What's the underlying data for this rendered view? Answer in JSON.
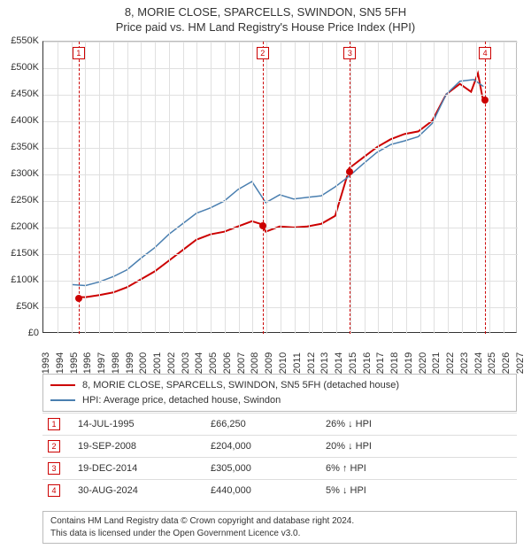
{
  "title": {
    "line1": "8, MORIE CLOSE, SPARCELLS, SWINDON, SN5 5FH",
    "line2": "Price paid vs. HM Land Registry's House Price Index (HPI)",
    "fontsize": 13,
    "color": "#333333"
  },
  "chart": {
    "type": "line",
    "background_color": "#ffffff",
    "grid_color": "#e0e0e0",
    "axis_color": "#333333",
    "xlim": [
      1993,
      2027
    ],
    "ylim": [
      0,
      550000
    ],
    "ytick_step": 50000,
    "ytick_labels": [
      "£0",
      "£50K",
      "£100K",
      "£150K",
      "£200K",
      "£250K",
      "£300K",
      "£350K",
      "£400K",
      "£450K",
      "£500K",
      "£550K"
    ],
    "xticks": [
      1993,
      1994,
      1995,
      1996,
      1997,
      1998,
      1999,
      2000,
      2001,
      2002,
      2003,
      2004,
      2005,
      2006,
      2007,
      2008,
      2009,
      2010,
      2011,
      2012,
      2013,
      2014,
      2015,
      2016,
      2017,
      2018,
      2019,
      2020,
      2021,
      2022,
      2023,
      2024,
      2025,
      2026,
      2027
    ],
    "series": [
      {
        "name": "price_paid",
        "label": "8, MORIE CLOSE, SPARCELLS, SWINDON, SN5 5FH (detached house)",
        "color": "#cc0000",
        "line_width": 2,
        "points": [
          [
            1995.53,
            66250
          ],
          [
            1996,
            66000
          ],
          [
            1997,
            70000
          ],
          [
            1998,
            75000
          ],
          [
            1999,
            85000
          ],
          [
            2000,
            100000
          ],
          [
            2001,
            115000
          ],
          [
            2002,
            135000
          ],
          [
            2003,
            155000
          ],
          [
            2004,
            175000
          ],
          [
            2005,
            185000
          ],
          [
            2006,
            190000
          ],
          [
            2007,
            200000
          ],
          [
            2008,
            210000
          ],
          [
            2008.72,
            204000
          ],
          [
            2009,
            190000
          ],
          [
            2010,
            200000
          ],
          [
            2011,
            198000
          ],
          [
            2012,
            200000
          ],
          [
            2013,
            205000
          ],
          [
            2014,
            220000
          ],
          [
            2014.97,
            305000
          ],
          [
            2015,
            310000
          ],
          [
            2016,
            330000
          ],
          [
            2017,
            350000
          ],
          [
            2018,
            365000
          ],
          [
            2019,
            375000
          ],
          [
            2020,
            380000
          ],
          [
            2021,
            400000
          ],
          [
            2022,
            450000
          ],
          [
            2023,
            470000
          ],
          [
            2023.8,
            455000
          ],
          [
            2024.3,
            490000
          ],
          [
            2024.66,
            440000
          ]
        ]
      },
      {
        "name": "hpi",
        "label": "HPI: Average price, detached house, Swindon",
        "color": "#4a7fb0",
        "line_width": 1.5,
        "points": [
          [
            1995,
            90000
          ],
          [
            1996,
            88000
          ],
          [
            1997,
            95000
          ],
          [
            1998,
            105000
          ],
          [
            1999,
            118000
          ],
          [
            2000,
            140000
          ],
          [
            2001,
            160000
          ],
          [
            2002,
            185000
          ],
          [
            2003,
            205000
          ],
          [
            2004,
            225000
          ],
          [
            2005,
            235000
          ],
          [
            2006,
            248000
          ],
          [
            2007,
            270000
          ],
          [
            2008,
            285000
          ],
          [
            2009,
            245000
          ],
          [
            2010,
            260000
          ],
          [
            2011,
            252000
          ],
          [
            2012,
            255000
          ],
          [
            2013,
            258000
          ],
          [
            2014,
            275000
          ],
          [
            2015,
            295000
          ],
          [
            2016,
            318000
          ],
          [
            2017,
            340000
          ],
          [
            2018,
            355000
          ],
          [
            2019,
            362000
          ],
          [
            2020,
            370000
          ],
          [
            2021,
            395000
          ],
          [
            2022,
            450000
          ],
          [
            2023,
            475000
          ],
          [
            2024,
            478000
          ],
          [
            2024.7,
            465000
          ]
        ]
      }
    ],
    "reference_lines": {
      "color": "#cc0000",
      "dash": "4,3",
      "items": [
        {
          "idx": "1",
          "x": 1995.53,
          "dot_y": 66250
        },
        {
          "idx": "2",
          "x": 2008.72,
          "dot_y": 204000
        },
        {
          "idx": "3",
          "x": 2014.97,
          "dot_y": 305000
        },
        {
          "idx": "4",
          "x": 2024.66,
          "dot_y": 440000
        }
      ]
    }
  },
  "legend": {
    "border_color": "#bbbbbb",
    "items": [
      {
        "color": "#cc0000",
        "label": "8, MORIE CLOSE, SPARCELLS, SWINDON, SN5 5FH (detached house)"
      },
      {
        "color": "#4a7fb0",
        "label": "HPI: Average price, detached house, Swindon"
      }
    ]
  },
  "sales": {
    "arrow_color": "#333333",
    "rows": [
      {
        "idx": "1",
        "date": "14-JUL-1995",
        "price": "£66,250",
        "delta": "26%",
        "dir": "↓",
        "suffix": "HPI"
      },
      {
        "idx": "2",
        "date": "19-SEP-2008",
        "price": "£204,000",
        "delta": "20%",
        "dir": "↓",
        "suffix": "HPI"
      },
      {
        "idx": "3",
        "date": "19-DEC-2014",
        "price": "£305,000",
        "delta": "6%",
        "dir": "↑",
        "suffix": "HPI"
      },
      {
        "idx": "4",
        "date": "30-AUG-2024",
        "price": "£440,000",
        "delta": "5%",
        "dir": "↓",
        "suffix": "HPI"
      }
    ]
  },
  "footer": {
    "line1": "Contains HM Land Registry data © Crown copyright and database right 2024.",
    "line2": "This data is licensed under the Open Government Licence v3.0."
  }
}
